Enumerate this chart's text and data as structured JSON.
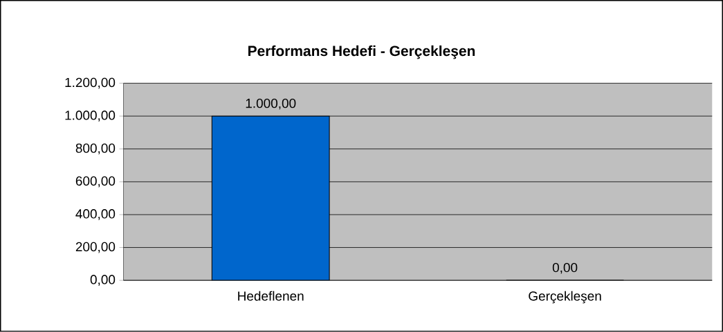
{
  "chart_data": {
    "type": "bar",
    "title": "Performans Hedefi - Gerçekleşen",
    "categories": [
      "Hedeflenen",
      "Gerçekleşen"
    ],
    "values": [
      1000,
      0
    ],
    "color": "#0066cc",
    "value_labels": [
      "1.000,00",
      "0,00"
    ],
    "ylim": [
      0,
      1200
    ],
    "yticks": [
      {
        "value": 0,
        "label": "0,00"
      },
      {
        "value": 200,
        "label": "200,00"
      },
      {
        "value": 400,
        "label": "400,00"
      },
      {
        "value": 600,
        "label": "600,00"
      },
      {
        "value": 800,
        "label": "800,00"
      },
      {
        "value": 1000,
        "label": "1.000,00"
      },
      {
        "value": 1200,
        "label": "1.200,00"
      }
    ],
    "grid": "y"
  }
}
